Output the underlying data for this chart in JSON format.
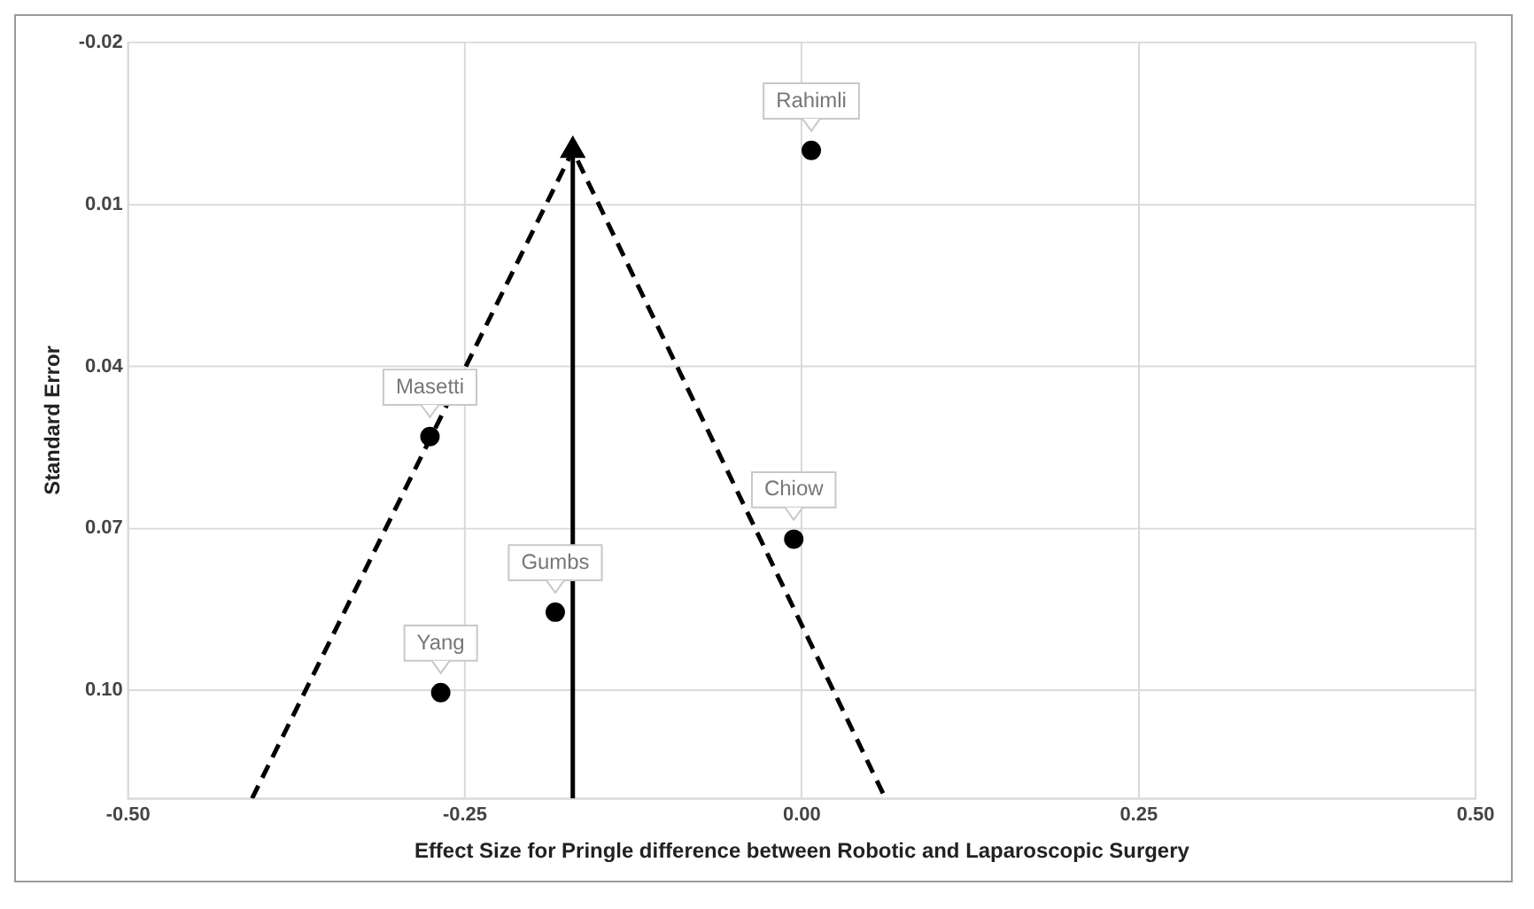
{
  "chart_data": {
    "type": "scatter",
    "xlabel": "Effect Size for Pringle difference between Robotic and Laparoscopic Surgery",
    "ylabel": "Standard Error",
    "xlim": [
      -0.5,
      0.5
    ],
    "xticks": [
      {
        "value": -0.5,
        "label": "-0.50"
      },
      {
        "value": -0.25,
        "label": "-0.25"
      },
      {
        "value": 0,
        "label": "0.00"
      },
      {
        "value": 0.25,
        "label": "0.25"
      },
      {
        "value": 0.5,
        "label": "0.50"
      }
    ],
    "ylim": [
      0.12,
      -0.02
    ],
    "yticks": [
      {
        "value": -0.02,
        "label": "-0.02"
      },
      {
        "value": 0.01,
        "label": "0.01"
      },
      {
        "value": 0.04,
        "label": "0.04"
      },
      {
        "value": 0.07,
        "label": "0.07"
      },
      {
        "value": 0.1,
        "label": "0.10"
      },
      {
        "value": 0.12,
        "label": null
      }
    ],
    "grid": true,
    "legend": false,
    "series": [
      {
        "type": "scatter",
        "color": "#000000",
        "marker": "circle",
        "x": [
          0.007,
          -0.276,
          -0.006,
          -0.183,
          -0.268
        ],
        "values": [
          0.0,
          0.053,
          0.072,
          0.0855,
          0.1004
        ]
      },
      {
        "type": "line",
        "color": "#000000",
        "marker": "none",
        "line_style": "dashed",
        "x": [
          -0.408,
          -0.17,
          0.062
        ],
        "values": [
          0.12,
          0.0,
          0.12
        ]
      },
      {
        "type": "line",
        "color": "#000000",
        "marker": "none",
        "line_style": "solid",
        "x": [
          -0.17,
          -0.17
        ],
        "values": [
          0.12,
          0.0
        ]
      }
    ],
    "annotations": [
      {
        "text": "Rahimli",
        "x": 0.007,
        "y": 0.0
      },
      {
        "text": "Masetti",
        "x": -0.276,
        "y": 0.053
      },
      {
        "text": "Chiow",
        "x": -0.006,
        "y": 0.072
      },
      {
        "text": "Gumbs",
        "x": -0.183,
        "y": 0.0855
      },
      {
        "text": "Yang",
        "x": -0.268,
        "y": 0.1004
      }
    ]
  }
}
